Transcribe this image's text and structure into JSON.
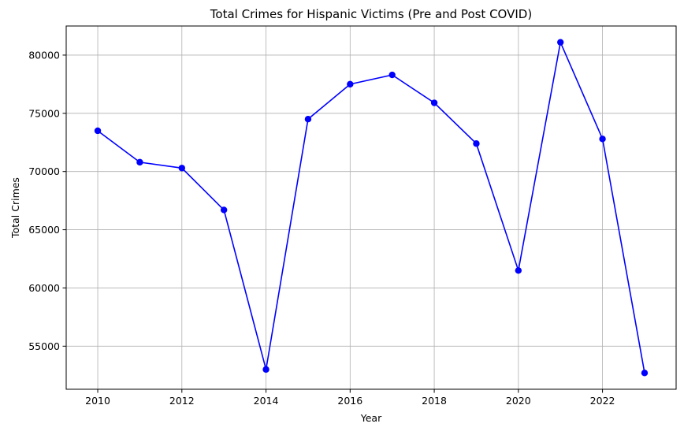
{
  "chart_data": {
    "type": "line",
    "title": "Total Crimes for Hispanic Victims (Pre and Post COVID)",
    "xlabel": "Year",
    "ylabel": "Total Crimes",
    "xlim": [
      2009.25,
      2023.75
    ],
    "ylim": [
      51300,
      82500
    ],
    "x_ticks": [
      2010,
      2012,
      2014,
      2016,
      2018,
      2020,
      2022
    ],
    "y_ticks": [
      55000,
      60000,
      65000,
      70000,
      75000,
      80000
    ],
    "grid": true,
    "series": [
      {
        "color": "#0000ff",
        "marker": "circle",
        "x": [
          2010,
          2011,
          2012,
          2013,
          2014,
          2015,
          2016,
          2017,
          2018,
          2019,
          2020,
          2021,
          2022,
          2023
        ],
        "values": [
          73500,
          70800,
          70300,
          66700,
          53000,
          74500,
          77500,
          78300,
          75900,
          72400,
          61500,
          81100,
          72800,
          52700
        ]
      }
    ]
  }
}
